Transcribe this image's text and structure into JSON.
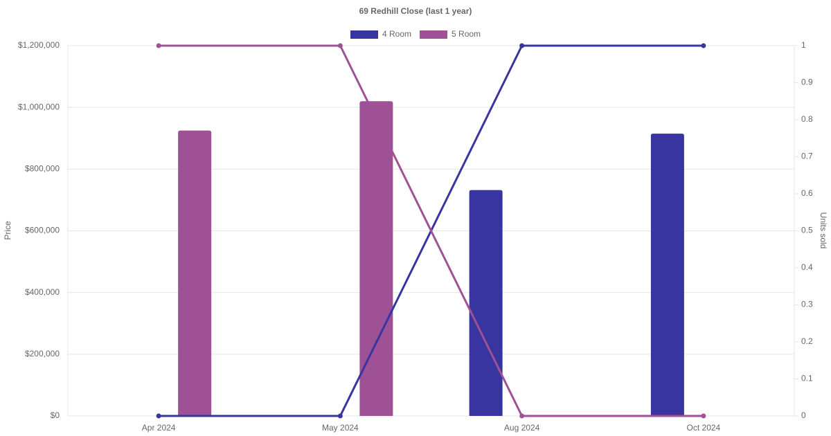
{
  "chart_data": {
    "type": "bar-line",
    "title": "69 Redhill Close (last 1 year)",
    "categories": [
      "Apr 2024",
      "May 2024",
      "Aug 2024",
      "Oct 2024"
    ],
    "series": [
      {
        "name": "4 Room",
        "color": "#3834a0",
        "values": [
          null,
          null,
          732000,
          915000
        ],
        "units_sold": [
          0,
          0,
          1,
          1
        ]
      },
      {
        "name": "5 Room",
        "color": "#9e5295",
        "values": [
          925000,
          1020000,
          null,
          null
        ],
        "units_sold": [
          1,
          1,
          0,
          0
        ]
      }
    ],
    "ylabel": "Price",
    "y2label": "Units sold",
    "ylim": [
      0,
      1200000
    ],
    "yticks": [
      {
        "value": 0,
        "label": "$0"
      },
      {
        "value": 200000,
        "label": "$200,000"
      },
      {
        "value": 400000,
        "label": "$400,000"
      },
      {
        "value": 600000,
        "label": "$600,000"
      },
      {
        "value": 800000,
        "label": "$800,000"
      },
      {
        "value": 1000000,
        "label": "$1,000,000"
      },
      {
        "value": 1200000,
        "label": "$1,200,000"
      }
    ],
    "y2lim": [
      0,
      1
    ],
    "y2ticks": [
      0,
      0.1,
      0.2,
      0.3,
      0.4,
      0.5,
      0.6,
      0.7,
      0.8,
      0.9,
      1
    ],
    "grid": true,
    "legend": "top"
  }
}
